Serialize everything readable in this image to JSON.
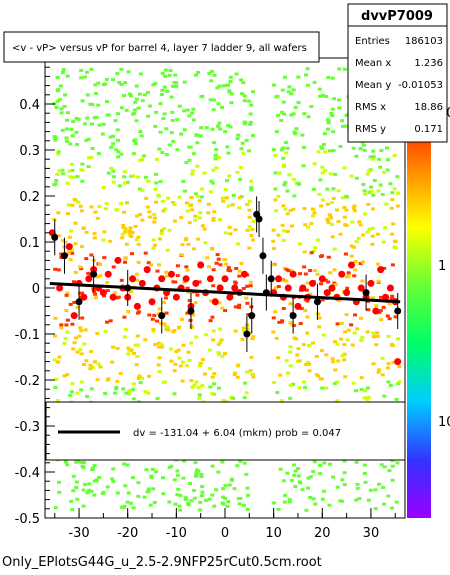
{
  "title": "<v - vP>       versus   vP for barrel 4, layer 7 ladder 9, all wafers",
  "stats": {
    "name": "dvvP7009",
    "rows": [
      {
        "label": "Entries",
        "value": "186103"
      },
      {
        "label": "Mean x",
        "value": "1.236"
      },
      {
        "label": "Mean y",
        "value": "-0.01053"
      },
      {
        "label": "RMS x",
        "value": "18.86"
      },
      {
        "label": "RMS y",
        "value": "0.171"
      }
    ]
  },
  "fit_legend": "dv = -131.04 +  6.04 (mkm) prob = 0.047",
  "footer": "Only_EPlotsG44G_u_2.5-2.9NFP25rCut0.5cm.root",
  "colors": {
    "fit_line": "#000000",
    "profile_red": "#ff0000",
    "profile_black": "#000000",
    "density_low": "#66ff33",
    "density_mid": "#ffcc00",
    "density_high": "#ff3300"
  },
  "chart_data": {
    "type": "scatter",
    "x_ticks": [
      "-30",
      "-20",
      "-10",
      "0",
      "10",
      "20",
      "30"
    ],
    "y_ticks": [
      "0.4",
      "0.3",
      "0.2",
      "0.1",
      "0",
      "-0.1",
      "-0.2",
      "-0.3",
      "-0.4",
      "-0.5"
    ],
    "z_ticks": [
      "10",
      "1",
      "10"
    ],
    "xlim": [
      -37,
      37
    ],
    "ylim": [
      -0.5,
      0.5
    ],
    "fit": {
      "intercept": -0.01,
      "slope": -0.00055,
      "x_range": [
        -36,
        36
      ]
    },
    "profile_red": [
      {
        "x": -35.5,
        "y": 0.12
      },
      {
        "x": -34,
        "y": 0.0
      },
      {
        "x": -32,
        "y": 0.09
      },
      {
        "x": -31,
        "y": -0.06
      },
      {
        "x": -30,
        "y": 0.01
      },
      {
        "x": -29,
        "y": -0.02
      },
      {
        "x": -28,
        "y": 0.02
      },
      {
        "x": -27,
        "y": 0.04
      },
      {
        "x": -26,
        "y": 0.0
      },
      {
        "x": -25,
        "y": -0.01
      },
      {
        "x": -24,
        "y": 0.03
      },
      {
        "x": -23,
        "y": -0.02
      },
      {
        "x": -22,
        "y": 0.06
      },
      {
        "x": -21,
        "y": 0.0
      },
      {
        "x": -20,
        "y": -0.02
      },
      {
        "x": -19,
        "y": 0.02
      },
      {
        "x": -18,
        "y": -0.04
      },
      {
        "x": -17,
        "y": 0.01
      },
      {
        "x": -16,
        "y": 0.04
      },
      {
        "x": -15,
        "y": -0.03
      },
      {
        "x": -14,
        "y": 0.0
      },
      {
        "x": -13,
        "y": 0.02
      },
      {
        "x": -12,
        "y": -0.01
      },
      {
        "x": -11,
        "y": 0.03
      },
      {
        "x": -10,
        "y": -0.02
      },
      {
        "x": -9,
        "y": 0.0
      },
      {
        "x": -8,
        "y": 0.02
      },
      {
        "x": -7,
        "y": -0.04
      },
      {
        "x": -6,
        "y": 0.01
      },
      {
        "x": -5,
        "y": 0.05
      },
      {
        "x": -4,
        "y": -0.01
      },
      {
        "x": -3,
        "y": 0.02
      },
      {
        "x": -2,
        "y": -0.03
      },
      {
        "x": -1,
        "y": 0.0
      },
      {
        "x": 0,
        "y": 0.02
      },
      {
        "x": 1,
        "y": -0.02
      },
      {
        "x": 2,
        "y": 0.0
      },
      {
        "x": 3,
        "y": -0.01
      },
      {
        "x": 4,
        "y": 0.03
      },
      {
        "x": 10,
        "y": -0.01
      },
      {
        "x": 11,
        "y": 0.02
      },
      {
        "x": 12,
        "y": -0.02
      },
      {
        "x": 13,
        "y": 0.0
      },
      {
        "x": 14,
        "y": 0.03
      },
      {
        "x": 15,
        "y": -0.04
      },
      {
        "x": 16,
        "y": 0.0
      },
      {
        "x": 17,
        "y": -0.02
      },
      {
        "x": 18,
        "y": 0.01
      },
      {
        "x": 19,
        "y": -0.03
      },
      {
        "x": 20,
        "y": 0.02
      },
      {
        "x": 21,
        "y": -0.01
      },
      {
        "x": 22,
        "y": 0.0
      },
      {
        "x": 23,
        "y": -0.02
      },
      {
        "x": 24,
        "y": 0.03
      },
      {
        "x": 25,
        "y": -0.01
      },
      {
        "x": 26,
        "y": 0.05
      },
      {
        "x": 27,
        "y": -0.03
      },
      {
        "x": 28,
        "y": 0.0
      },
      {
        "x": 29,
        "y": -0.02
      },
      {
        "x": 30,
        "y": 0.01
      },
      {
        "x": 31,
        "y": -0.05
      },
      {
        "x": 32,
        "y": 0.04
      },
      {
        "x": 33,
        "y": -0.02
      },
      {
        "x": 34,
        "y": 0.0
      },
      {
        "x": 35,
        "y": -0.03
      },
      {
        "x": 35.5,
        "y": -0.16
      }
    ],
    "profile_black": [
      {
        "x": -35,
        "y": 0.11
      },
      {
        "x": -33,
        "y": 0.07
      },
      {
        "x": -30,
        "y": -0.03
      },
      {
        "x": -27,
        "y": 0.03
      },
      {
        "x": -20,
        "y": 0.0
      },
      {
        "x": -13,
        "y": -0.06
      },
      {
        "x": -7,
        "y": -0.05
      },
      {
        "x": 4.5,
        "y": -0.1
      },
      {
        "x": 5.5,
        "y": -0.06
      },
      {
        "x": 6.5,
        "y": 0.16
      },
      {
        "x": 7,
        "y": 0.15
      },
      {
        "x": 7.8,
        "y": 0.07
      },
      {
        "x": 8.5,
        "y": -0.01
      },
      {
        "x": 9.5,
        "y": 0.02
      },
      {
        "x": 14,
        "y": -0.06
      },
      {
        "x": 19,
        "y": -0.03
      },
      {
        "x": 29,
        "y": -0.01
      },
      {
        "x": 35.5,
        "y": -0.05
      }
    ]
  }
}
